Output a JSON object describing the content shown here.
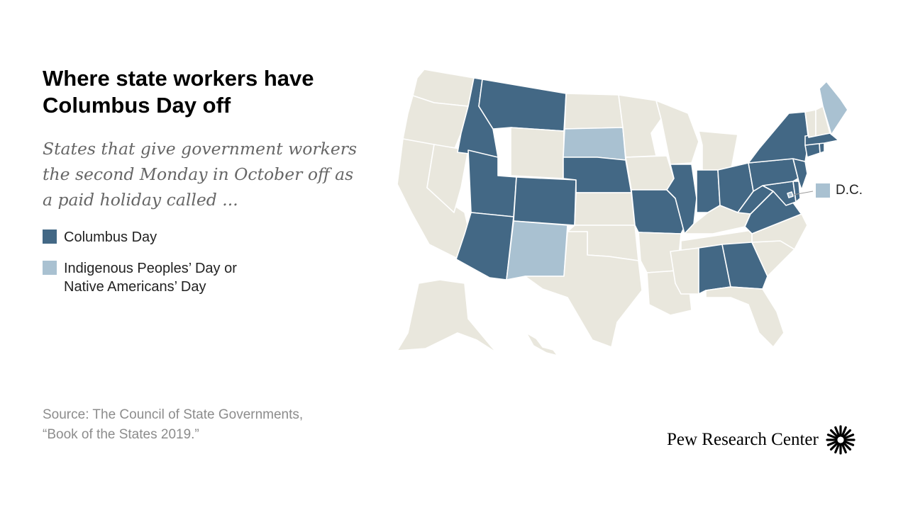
{
  "title_lines": [
    "Where state workers have",
    "Columbus Day off"
  ],
  "subtitle_lines": [
    "States that give government workers",
    "the second Monday in October off as",
    "a paid holiday called ..."
  ],
  "legend": [
    {
      "label_lines": [
        "Columbus Day"
      ],
      "color": "#436885"
    },
    {
      "label_lines": [
        "Indigenous Peoples’ Day or",
        "Native Americans’ Day"
      ],
      "color": "#a9c1d1"
    }
  ],
  "map": {
    "colors": {
      "columbus": "#436885",
      "indigenous": "#a9c1d1",
      "none": "#e9e7dd",
      "border": "#ffffff"
    },
    "columbus_day_states": [
      "MT",
      "ID",
      "UT",
      "AZ",
      "CO",
      "NE",
      "MO",
      "IL",
      "IN",
      "OH",
      "NY",
      "PA",
      "NJ",
      "MD",
      "WV",
      "VA",
      "AL",
      "GA",
      "CT",
      "MA",
      "RI",
      "DE"
    ],
    "indigenous_day_states": [
      "SD",
      "NM",
      "ME",
      "DC"
    ],
    "dc_label": "D.C."
  },
  "source_lines": [
    "Source: The Council of State Governments,",
    "“Book of the States 2019.”"
  ],
  "brand": {
    "name": "Pew Research Center",
    "logo_icon": "pew-starburst-icon"
  }
}
